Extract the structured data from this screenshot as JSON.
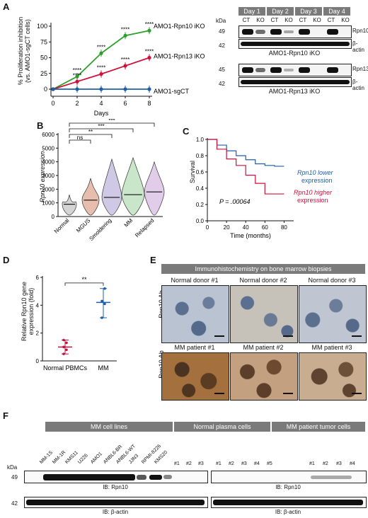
{
  "panels": {
    "A": "A",
    "B": "B",
    "C": "C",
    "D": "D",
    "E": "E",
    "F": "F"
  },
  "panelA": {
    "ylabel_line1": "% Proliferation inhibition",
    "ylabel_line2": "(vs. AMO1-sgCT cells)",
    "xlabel": "Days",
    "series_labels": [
      "AMO1-Rpn10 iKO",
      "AMO1-Rpn13 iKO",
      "AMO1-sgCT"
    ],
    "sig": "****",
    "yticks": [
      "0",
      "25",
      "50",
      "75",
      "100"
    ],
    "xticks": [
      "0",
      "2",
      "4",
      "6",
      "8"
    ]
  },
  "blotA": {
    "days": [
      "Day 1",
      "Day 2",
      "Day 3",
      "Day 4"
    ],
    "lanes": [
      "CT",
      "KO",
      "CT",
      "KO",
      "CT",
      "KO",
      "CT",
      "KO"
    ],
    "kda": "kDa",
    "blot1": {
      "mw": [
        "49",
        "42"
      ],
      "labels": [
        "Rpn10",
        "β-actin"
      ],
      "title": "AMO1-Rpn10 iKO"
    },
    "blot2": {
      "mw": [
        "45",
        "42"
      ],
      "labels": [
        "Rpn13",
        "β-actin"
      ],
      "title": "AMO1-Rpn13 iKO"
    }
  },
  "panelB": {
    "ylabel": "Rpn10 expression",
    "yticks": [
      "0",
      "1000",
      "2000",
      "3000",
      "4000",
      "5000",
      "6000"
    ],
    "groups": [
      "Normal",
      "MGUS",
      "Smoldering",
      "MM",
      "Relapsed"
    ],
    "sig": [
      "ns",
      "**",
      "***",
      "***"
    ]
  },
  "panelC": {
    "ylabel": "Survival",
    "xlabel": "Time (months)",
    "yticks": [
      "0.0",
      "0.2",
      "0.4",
      "0.6",
      "0.8",
      "1.0"
    ],
    "xticks": [
      "0",
      "20",
      "40",
      "60",
      "80"
    ],
    "pvalue": "P = .00064",
    "low_label_1": "Rpn10 lower",
    "low_label_2": "expression",
    "high_label_1": "Rpn10 higher",
    "high_label_2": "expression"
  },
  "panelD": {
    "ylabel_line1": "Relative Rpn10 gene",
    "ylabel_line2": "expression (fold)",
    "yticks": [
      "0",
      "2",
      "4",
      "6"
    ],
    "groups": [
      "Normal PBMCs",
      "MM"
    ],
    "sig": "**"
  },
  "panelE": {
    "header": "Immunohistochemistry on bone marrow biopsies",
    "row_label": "Rpn10 Ab",
    "top": [
      "Normal donor #1",
      "Normal donor #2",
      "Normal donor #3"
    ],
    "bottom": [
      "MM patient #1",
      "MM patient #2",
      "MM patient #3"
    ]
  },
  "panelF": {
    "groups": [
      "MM cell lines",
      "Normal plasma cells",
      "MM patient tumor cells"
    ],
    "cell_lines": [
      "MM-1S",
      "MM-1R",
      "KMS11",
      "U226",
      "AMO1",
      "ANBL6-BR",
      "ANBL6-WT",
      "JJN3",
      "RPMI-8226",
      "KMS20"
    ],
    "normal": [
      "#1",
      "#2",
      "#3",
      "#1",
      "#2",
      "#3",
      "#4",
      "#5"
    ],
    "patient": [
      "#1",
      "#2",
      "#3",
      "#4"
    ],
    "kda": "kDa",
    "mw": [
      "49",
      "42"
    ],
    "ib1": "IB: Rpn10",
    "ib2": "IB: β-actin"
  },
  "chart_data": [
    {
      "type": "line",
      "xlabel": "Days",
      "ylabel": "% Proliferation inhibition (vs. AMO1-sgCT cells)",
      "x": [
        0,
        2,
        4,
        6,
        8
      ],
      "ylim": [
        -10,
        100
      ],
      "series": [
        {
          "name": "AMO1-Rpn10 iKO",
          "values": [
            0,
            20,
            57,
            85,
            93
          ],
          "color": "#2ca02c"
        },
        {
          "name": "AMO1-Rpn13 iKO",
          "values": [
            0,
            12,
            24,
            37,
            50
          ],
          "color": "#d0103a"
        },
        {
          "name": "AMO1-sgCT",
          "values": [
            0,
            0,
            0,
            0,
            0
          ],
          "color": "#1f5fa8"
        }
      ]
    },
    {
      "type": "violin",
      "ylabel": "Rpn10 expression",
      "categories": [
        "Normal",
        "MGUS",
        "Smoldering",
        "MM",
        "Relapsed"
      ],
      "medians": [
        900,
        1200,
        1400,
        1600,
        1800
      ],
      "ylim": [
        0,
        6000
      ]
    },
    {
      "type": "line",
      "xlabel": "Time (months)",
      "ylabel": "Survival",
      "ylim": [
        0,
        1
      ],
      "series": [
        {
          "name": "Rpn10 lower expression",
          "color": "#1f5fa8",
          "x": [
            0,
            10,
            20,
            30,
            40,
            50,
            60,
            70,
            80
          ],
          "values": [
            1.0,
            0.93,
            0.86,
            0.8,
            0.75,
            0.7,
            0.68,
            0.67,
            0.67
          ]
        },
        {
          "name": "Rpn10 higher expression",
          "color": "#d0103a",
          "x": [
            0,
            10,
            20,
            30,
            40,
            50,
            60,
            70,
            80
          ],
          "values": [
            1.0,
            0.88,
            0.76,
            0.68,
            0.56,
            0.46,
            0.33,
            0.33,
            0.33
          ]
        }
      ]
    },
    {
      "type": "scatter",
      "ylabel": "Relative Rpn10 gene expression (fold)",
      "categories": [
        "Normal PBMCs",
        "MM"
      ],
      "means": [
        1.0,
        4.2
      ],
      "points": [
        [
          0.5,
          0.8,
          1.0,
          1.3,
          1.5
        ],
        [
          3.1,
          4.1,
          4.3,
          5.2
        ]
      ]
    }
  ]
}
